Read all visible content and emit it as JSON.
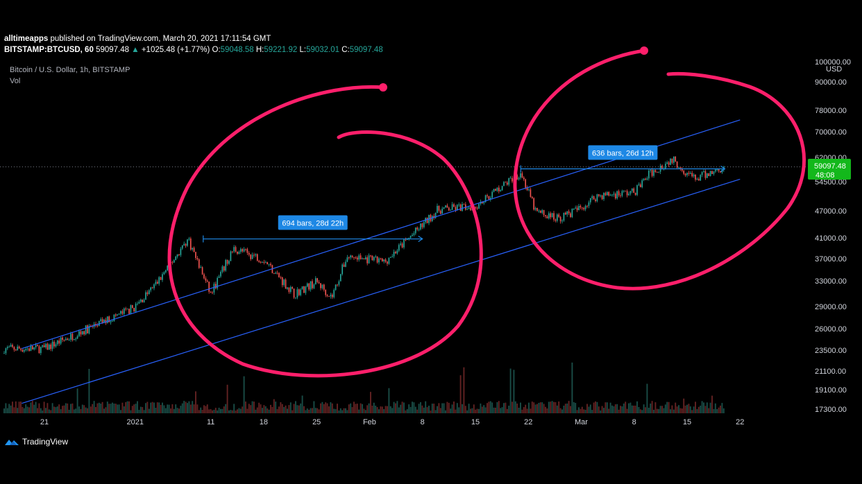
{
  "header": {
    "author": "alltimeapps",
    "published_text": "published on TradingView.com, March 20, 2021 17:11:54 GMT",
    "symbol": "BITSTAMP:BTCUSD, 60",
    "last": "59097.48",
    "change": "+1025.48 (+1.77%)",
    "o_label": "O:",
    "o": "59048.58",
    "h_label": "H:",
    "h": "59221.92",
    "l_label": "L:",
    "l": "59032.01",
    "c_label": "C:",
    "c": "59097.48"
  },
  "legend": {
    "series_title": "Bitcoin / U.S. Dollar, 1h, BITSTAMP",
    "volume_label": "Vol"
  },
  "price_axis": {
    "currency_top": "100000.00",
    "currency_unit": "USD",
    "ticks": [
      "90000.00",
      "78000.00",
      "70000.00",
      "62000.00",
      "54500.00",
      "47000.00",
      "41000.00",
      "37000.00",
      "33000.00",
      "29000.00",
      "26000.00",
      "23500.00",
      "21100.00",
      "19100.00",
      "17300.00"
    ]
  },
  "price_badge": {
    "price": "59097.48",
    "countdown": "48:08"
  },
  "measurements": [
    {
      "label": "694 bars, 28d 22h"
    },
    {
      "label": "636 bars, 26d 12h"
    }
  ],
  "time_axis": {
    "ticks": [
      "21",
      "2021",
      "11",
      "18",
      "25",
      "Feb",
      "8",
      "15",
      "22",
      "Mar",
      "8",
      "15",
      "22"
    ]
  },
  "brand": {
    "name": "TradingView"
  },
  "colors": {
    "up": "#26a69a",
    "down": "#ef5350",
    "channel": "#2962ff",
    "annotation": "#ff1f6b",
    "badge": "#13b81b",
    "measure": "#1e88e5"
  },
  "chart_data": {
    "type": "candlestick",
    "title": "Bitcoin / U.S. Dollar, 1h, BITSTAMP",
    "scale": "log",
    "ylim": [
      17300,
      100000
    ],
    "series": [
      {
        "name": "BTCUSD",
        "x": [
          "Dec 21",
          "Jan 1",
          "Jan 4",
          "Jan 8",
          "Jan 11",
          "Jan 14",
          "Jan 18",
          "Jan 22",
          "Jan 25",
          "Jan 27",
          "Jan 29",
          "Feb 3",
          "Feb 8",
          "Feb 10",
          "Feb 15",
          "Feb 21",
          "Feb 23",
          "Feb 26",
          "Mar 1",
          "Mar 3",
          "Mar 8",
          "Mar 10",
          "Mar 13",
          "Mar 16",
          "Mar 20"
        ],
        "values": [
          23500,
          29000,
          33000,
          41000,
          31000,
          39000,
          37000,
          31000,
          33000,
          30500,
          37500,
          36500,
          44000,
          47500,
          48500,
          57500,
          47000,
          45500,
          48000,
          51000,
          52000,
          57000,
          61500,
          55500,
          59097.48
        ]
      }
    ],
    "price_line": 59097.48,
    "channel_lines": [
      {
        "from": [
          "Dec 18",
          23500
        ],
        "to": [
          "Mar 22",
          75000
        ]
      },
      {
        "from": [
          "Dec 18",
          17800
        ],
        "to": [
          "Mar 22",
          55500
        ]
      }
    ],
    "measurements": [
      {
        "label": "694 bars, 28d 22h",
        "from": [
          "Jan 10",
          41000
        ],
        "to": [
          "Feb 8",
          41000
        ]
      },
      {
        "label": "636 bars, 26d 12h",
        "from": [
          "Feb 21",
          58500
        ],
        "to": [
          "Mar 20",
          58500
        ]
      }
    ],
    "xlabel": "",
    "ylabel": "",
    "legend": "none",
    "grid": false
  }
}
